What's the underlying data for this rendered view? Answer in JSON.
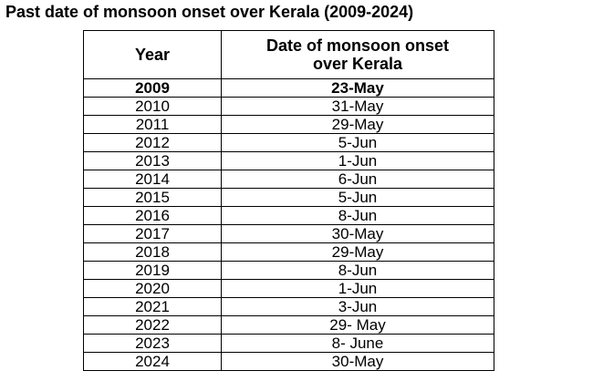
{
  "title": "Past date of monsoon onset over Kerala (2009-2024)",
  "table": {
    "headers": {
      "year": "Year",
      "date_line1": "Date of monsoon onset",
      "date_line2": "over Kerala"
    },
    "rows": [
      {
        "year": "2009",
        "date": "23-May"
      },
      {
        "year": "2010",
        "date": "31-May"
      },
      {
        "year": "2011",
        "date": "29-May"
      },
      {
        "year": "2012",
        "date": "5-Jun"
      },
      {
        "year": "2013",
        "date": "1-Jun"
      },
      {
        "year": "2014",
        "date": "6-Jun"
      },
      {
        "year": "2015",
        "date": "5-Jun"
      },
      {
        "year": "2016",
        "date": "8-Jun"
      },
      {
        "year": "2017",
        "date": "30-May"
      },
      {
        "year": "2018",
        "date": "29-May"
      },
      {
        "year": "2019",
        "date": "8-Jun"
      },
      {
        "year": "2020",
        "date": "1-Jun"
      },
      {
        "year": "2021",
        "date": "3-Jun"
      },
      {
        "year": "2022",
        "date": "29- May"
      },
      {
        "year": "2023",
        "date": "8- June"
      },
      {
        "year": "2024",
        "date": "30-May"
      }
    ]
  }
}
